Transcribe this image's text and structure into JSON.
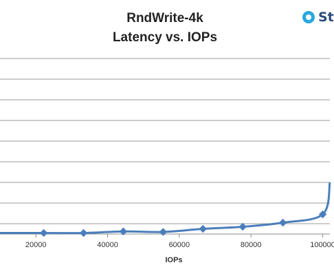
{
  "chart_data": {
    "type": "line",
    "title_line1": "RndWrite-4k",
    "title_line2": "Latency vs. IOPs",
    "xlabel": "IOPs",
    "ylabel": "",
    "xlim": [
      10000,
      102000
    ],
    "ylim": [
      0,
      17
    ],
    "x_ticks": [
      20000,
      40000,
      60000,
      80000,
      100000
    ],
    "x_tick_labels": [
      "20000",
      "40000",
      "60000",
      "80000",
      "100000"
    ],
    "y_gridlines": [
      1,
      3,
      5,
      7,
      9,
      11,
      13,
      15,
      17
    ],
    "grid": true,
    "legend": "none",
    "series": [
      {
        "color": "#4a7ebb",
        "marker": "diamond",
        "x": [
          22200,
          33300,
          44400,
          55500,
          66600,
          77700,
          88900,
          100000,
          102000
        ],
        "y": [
          0.1,
          0.1,
          0.25,
          0.2,
          0.5,
          0.7,
          1.1,
          1.9,
          5.0
        ]
      }
    ]
  },
  "logo": {
    "text": "St",
    "color": "#2aa8df",
    "icon": "storagereview-logo-icon"
  }
}
